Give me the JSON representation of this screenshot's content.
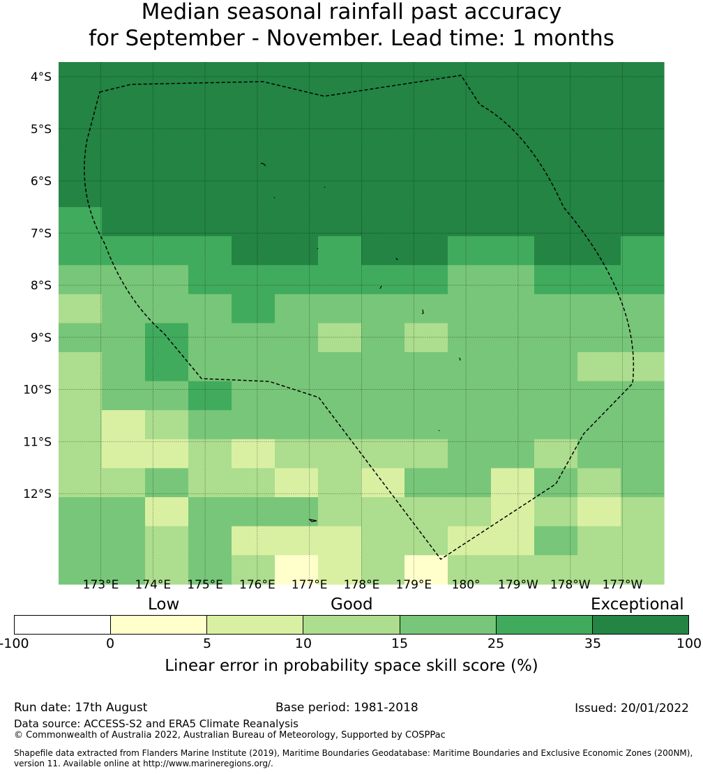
{
  "title": {
    "line1": "Median seasonal rainfall past accuracy",
    "line2": "for September - November. Lead time: 1 months"
  },
  "map": {
    "lat_labels": [
      "4°S",
      "5°S",
      "6°S",
      "7°S",
      "8°S",
      "9°S",
      "10°S",
      "11°S",
      "12°S"
    ],
    "lon_labels": [
      "173°E",
      "174°E",
      "175°E",
      "176°E",
      "177°E",
      "178°E",
      "179°E",
      "180°",
      "179°W",
      "178°W",
      "177°W"
    ],
    "score_grid": [
      [
        6,
        6,
        6,
        6,
        6,
        6,
        6,
        6,
        6,
        6,
        6,
        6,
        6,
        6
      ],
      [
        6,
        6,
        6,
        6,
        6,
        6,
        6,
        6,
        6,
        6,
        6,
        6,
        6,
        6
      ],
      [
        6,
        6,
        6,
        6,
        6,
        6,
        6,
        6,
        6,
        6,
        6,
        6,
        6,
        6
      ],
      [
        6,
        6,
        6,
        6,
        6,
        6,
        6,
        6,
        6,
        6,
        6,
        6,
        6,
        6
      ],
      [
        6,
        6,
        6,
        6,
        6,
        6,
        6,
        6,
        6,
        6,
        6,
        6,
        6,
        6
      ],
      [
        5,
        6,
        6,
        6,
        6,
        6,
        6,
        6,
        6,
        6,
        6,
        6,
        6,
        6
      ],
      [
        5,
        5,
        5,
        5,
        6,
        6,
        5,
        6,
        6,
        5,
        5,
        6,
        6,
        5
      ],
      [
        4,
        4,
        4,
        5,
        5,
        5,
        5,
        5,
        5,
        4,
        4,
        5,
        5,
        5
      ],
      [
        3,
        4,
        4,
        4,
        5,
        4,
        4,
        4,
        4,
        4,
        4,
        4,
        4,
        4
      ],
      [
        4,
        4,
        5,
        4,
        4,
        4,
        3,
        4,
        3,
        4,
        4,
        4,
        4,
        4
      ],
      [
        3,
        4,
        5,
        4,
        4,
        4,
        4,
        4,
        4,
        4,
        4,
        4,
        3,
        3
      ],
      [
        3,
        4,
        4,
        5,
        4,
        4,
        4,
        4,
        4,
        4,
        4,
        4,
        4,
        4
      ],
      [
        3,
        2,
        3,
        4,
        4,
        4,
        4,
        4,
        4,
        4,
        4,
        4,
        4,
        4
      ],
      [
        3,
        2,
        2,
        3,
        2,
        3,
        3,
        3,
        3,
        4,
        4,
        3,
        4,
        4
      ],
      [
        3,
        3,
        4,
        3,
        3,
        2,
        3,
        2,
        4,
        4,
        2,
        4,
        3,
        4
      ],
      [
        4,
        4,
        2,
        4,
        4,
        4,
        3,
        3,
        3,
        3,
        2,
        3,
        2,
        3
      ],
      [
        4,
        4,
        3,
        4,
        2,
        2,
        2,
        3,
        3,
        2,
        2,
        4,
        3,
        3
      ],
      [
        4,
        4,
        3,
        4,
        3,
        1,
        2,
        3,
        1,
        3,
        3,
        3,
        3,
        3
      ]
    ],
    "colors": [
      "#ffffff",
      "#ffffcc",
      "#d9f0a3",
      "#addd8e",
      "#78c679",
      "#41ab5d",
      "#238443"
    ]
  },
  "colorbar": {
    "categories": [
      "Low",
      "Good",
      "Exceptional"
    ],
    "ticks": [
      "-100",
      "0",
      "5",
      "10",
      "15",
      "25",
      "35",
      "100"
    ],
    "label": "Linear error in probability space skill score (%)"
  },
  "footer": {
    "run_date": "Run date: 17th August",
    "base_period": "Base period: 1981-2018",
    "issued": "Issued: 20/01/2022",
    "data_source": "Data source: ACCESS-S2 and ERA5 Climate Reanalysis",
    "copyright": "© Commonwealth of Australia 2022, Australian Bureau of Meteorology, Supported by COSPPac",
    "shapefile": "Shapefile data extracted from Flanders Marine Institute (2019), Maritime Boundaries Geodatabase: Maritime Boundaries and Exclusive Economic Zones (200NM), version 11. Available online at http://www.marineregions.org/."
  }
}
